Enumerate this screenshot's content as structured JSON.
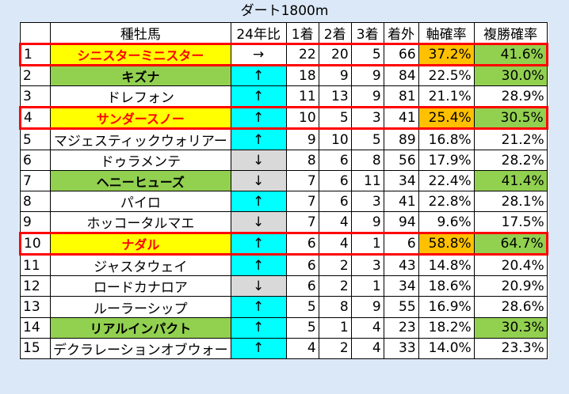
{
  "title": "ダート1800m",
  "headers": [
    "",
    "種牡馬",
    "24年比",
    "1着",
    "2着",
    "3着",
    "着外",
    "軸確率",
    "複勝確率"
  ],
  "colors": {
    "highlight_border": "#ff0000",
    "name_yellow_bg": "#ffff00",
    "name_yellow_text": "#ff0000",
    "name_green_bg": "#92d050",
    "arrow_up_bg": "#00ffff",
    "arrow_down_bg": "#d9d9d9",
    "pct_orange_bg": "#ffc000",
    "pct_green_bg": "#92d050"
  },
  "rows": [
    {
      "rank": "1",
      "name": "シニスターミニスター",
      "trend": "→",
      "first": "22",
      "second": "20",
      "third": "5",
      "out": "66",
      "axis_rate": "37.2%",
      "place_rate": "41.6%"
    },
    {
      "rank": "2",
      "name": "キズナ",
      "trend": "↑",
      "first": "18",
      "second": "9",
      "third": "9",
      "out": "84",
      "axis_rate": "22.5%",
      "place_rate": "30.0%"
    },
    {
      "rank": "3",
      "name": "ドレフォン",
      "trend": "↑",
      "first": "11",
      "second": "13",
      "third": "9",
      "out": "81",
      "axis_rate": "21.1%",
      "place_rate": "28.9%"
    },
    {
      "rank": "4",
      "name": "サンダースノー",
      "trend": "↑",
      "first": "10",
      "second": "5",
      "third": "3",
      "out": "41",
      "axis_rate": "25.4%",
      "place_rate": "30.5%"
    },
    {
      "rank": "5",
      "name": "マジェスティックウォリアー",
      "trend": "↑",
      "first": "9",
      "second": "10",
      "third": "5",
      "out": "89",
      "axis_rate": "16.8%",
      "place_rate": "21.2%"
    },
    {
      "rank": "6",
      "name": "ドゥラメンテ",
      "trend": "↓",
      "first": "8",
      "second": "6",
      "third": "8",
      "out": "56",
      "axis_rate": "17.9%",
      "place_rate": "28.2%"
    },
    {
      "rank": "7",
      "name": "ヘニーヒューズ",
      "trend": "↓",
      "first": "7",
      "second": "6",
      "third": "11",
      "out": "34",
      "axis_rate": "22.4%",
      "place_rate": "41.4%"
    },
    {
      "rank": "8",
      "name": "パイロ",
      "trend": "↑",
      "first": "7",
      "second": "6",
      "third": "3",
      "out": "41",
      "axis_rate": "22.8%",
      "place_rate": "28.1%"
    },
    {
      "rank": "9",
      "name": "ホッコータルマエ",
      "trend": "↓",
      "first": "7",
      "second": "4",
      "third": "9",
      "out": "94",
      "axis_rate": "9.6%",
      "place_rate": "17.5%"
    },
    {
      "rank": "10",
      "name": "ナダル",
      "trend": "↑",
      "first": "6",
      "second": "4",
      "third": "1",
      "out": "6",
      "axis_rate": "58.8%",
      "place_rate": "64.7%"
    },
    {
      "rank": "11",
      "name": "ジャスタウェイ",
      "trend": "↑",
      "first": "6",
      "second": "2",
      "third": "3",
      "out": "43",
      "axis_rate": "14.8%",
      "place_rate": "20.4%"
    },
    {
      "rank": "12",
      "name": "ロードカナロア",
      "trend": "↓",
      "first": "6",
      "second": "2",
      "third": "1",
      "out": "34",
      "axis_rate": "18.6%",
      "place_rate": "20.9%"
    },
    {
      "rank": "13",
      "name": "ルーラーシップ",
      "trend": "↑",
      "first": "5",
      "second": "8",
      "third": "9",
      "out": "55",
      "axis_rate": "16.9%",
      "place_rate": "28.6%"
    },
    {
      "rank": "14",
      "name": "リアルインパクト",
      "trend": "↑",
      "first": "5",
      "second": "1",
      "third": "4",
      "out": "23",
      "axis_rate": "18.2%",
      "place_rate": "30.3%"
    },
    {
      "rank": "15",
      "name": "デクラレーションオブウォー",
      "trend": "↑",
      "first": "4",
      "second": "2",
      "third": "4",
      "out": "33",
      "axis_rate": "14.0%",
      "place_rate": "23.3%"
    }
  ]
}
